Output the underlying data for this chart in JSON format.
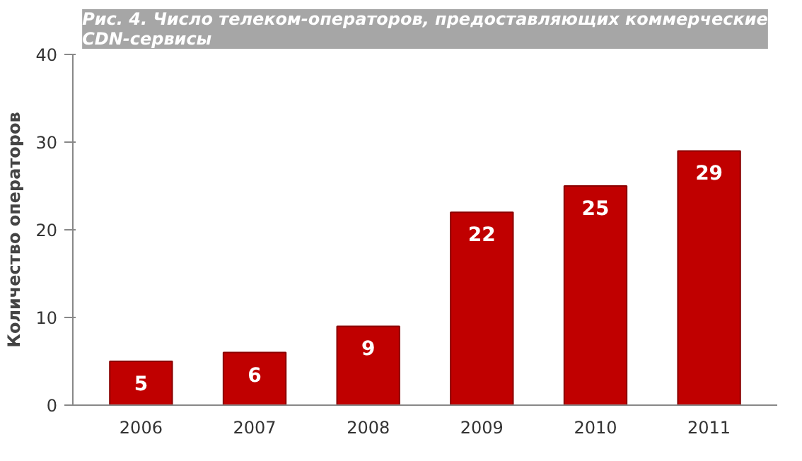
{
  "chart_data": {
    "type": "bar",
    "title": "Рис. 4. Число телеком-операторов, предоставляющих коммерческие\nCDN-сервисы",
    "ylabel": "Количество операторов",
    "categories": [
      "2006",
      "2007",
      "2008",
      "2009",
      "2010",
      "2011"
    ],
    "values": [
      5,
      6,
      9,
      22,
      25,
      29
    ],
    "color": "#c00000",
    "ylim": [
      0,
      40
    ],
    "yticks": [
      0,
      10,
      20,
      30,
      40
    ],
    "data_labels": true,
    "grid": false
  }
}
